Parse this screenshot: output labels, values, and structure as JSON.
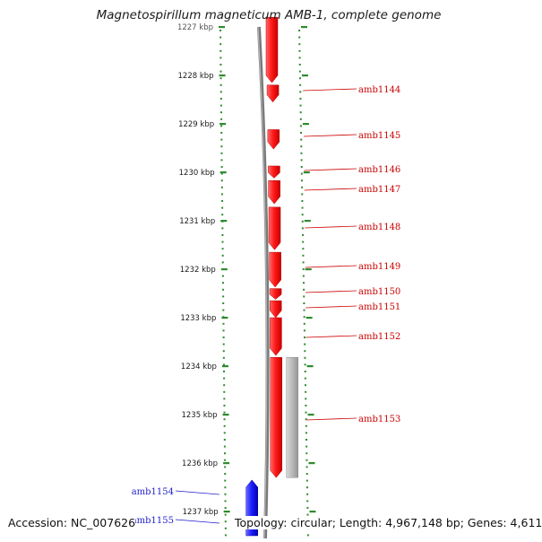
{
  "title": "Magnetospirillum magneticum AMB-1, complete genome",
  "accession_text": "Accession: NC_007626",
  "topology_text": "Topology: circular; Length: 4,967,148 bp; Genes: 4,611",
  "colors": {
    "forward_gene": "#ff1a1a",
    "reverse_gene": "#1f1fff",
    "forward_label": "#cc0000",
    "reverse_label": "#1f1fcc",
    "ruler_tick": "#2e8b2e",
    "backbone": "#7a7a7a",
    "feature_band": "#b8b8b8"
  },
  "ruler": {
    "ticks_kbp": [
      1227,
      1228,
      1229,
      1230,
      1231,
      1232,
      1233,
      1234,
      1235,
      1236,
      1237
    ],
    "tick_labels": [
      "1227 kbp",
      "1228 kbp",
      "1229 kbp",
      "1230 kbp",
      "1231 kbp",
      "1232 kbp",
      "1233 kbp",
      "1234 kbp",
      "1235 kbp",
      "1236 kbp",
      "1237 kbp"
    ]
  },
  "genes": [
    {
      "name": "",
      "strand": "+",
      "start_kbp": 1226.8,
      "end_kbp": 1228.15
    },
    {
      "name": "amb1144",
      "strand": "+",
      "start_kbp": 1228.2,
      "end_kbp": 1228.55
    },
    {
      "name": "amb1145",
      "strand": "+",
      "start_kbp": 1229.12,
      "end_kbp": 1229.52
    },
    {
      "name": "amb1146",
      "strand": "+",
      "start_kbp": 1229.87,
      "end_kbp": 1230.12
    },
    {
      "name": "amb1147",
      "strand": "+",
      "start_kbp": 1230.17,
      "end_kbp": 1230.65
    },
    {
      "name": "amb1148",
      "strand": "+",
      "start_kbp": 1230.72,
      "end_kbp": 1231.6
    },
    {
      "name": "amb1149",
      "strand": "+",
      "start_kbp": 1231.65,
      "end_kbp": 1232.37
    },
    {
      "name": "amb1150",
      "strand": "+",
      "start_kbp": 1232.4,
      "end_kbp": 1232.62
    },
    {
      "name": "amb1151",
      "strand": "+",
      "start_kbp": 1232.65,
      "end_kbp": 1233.0
    },
    {
      "name": "amb1152",
      "strand": "+",
      "start_kbp": 1233.0,
      "end_kbp": 1233.78
    },
    {
      "name": "amb1153",
      "strand": "+",
      "start_kbp": 1233.82,
      "end_kbp": 1236.3
    },
    {
      "name": "amb1154",
      "strand": "-",
      "start_kbp": 1236.35,
      "end_kbp": 1237.5
    },
    {
      "name": "amb1155",
      "strand": "-",
      "start_kbp": 1236.35,
      "end_kbp": 1237.5
    }
  ],
  "features": [
    {
      "name": "",
      "start_kbp": 1233.82,
      "end_kbp": 1236.3
    }
  ]
}
